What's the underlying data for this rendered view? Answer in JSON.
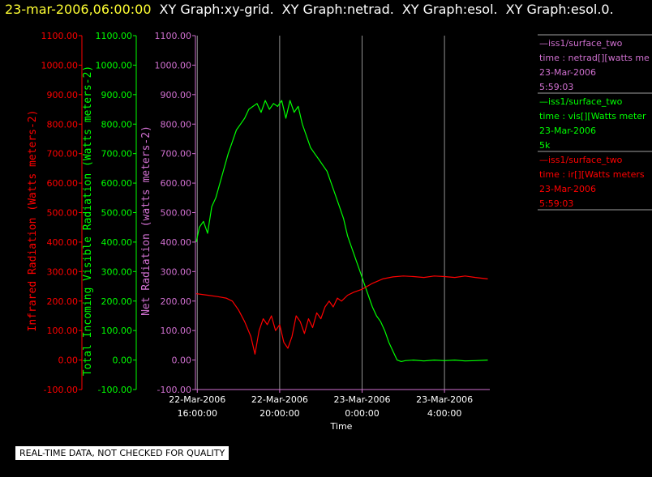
{
  "header": {
    "timestamp": "23-mar-2006,06:00:00",
    "graphs": [
      "XY Graph:xy-grid.",
      "XY Graph:netrad.",
      "XY Graph:esol.",
      "XY Graph:esol.0."
    ]
  },
  "notice": "REAL-TIME DATA, NOT CHECKED FOR QUALITY",
  "colors": {
    "net": "#d070d0",
    "vis": "#00ff00",
    "ir": "#ff0000",
    "grid": "#909090",
    "title": "#ffff33"
  },
  "legend": [
    {
      "line1": "—iss1/surface_two",
      "line2": "time : netrad[][watts me",
      "line3": "23-Mar-2006",
      "line4": "5:59:03",
      "color": "#d070d0"
    },
    {
      "line1": "—iss1/surface_two",
      "line2": "time : vis[][Watts meter",
      "line3": "23-Mar-2006",
      "line4": "5k",
      "color": "#00ff00"
    },
    {
      "line1": "—iss1/surface_two",
      "line2": "time : ir[][Watts meters",
      "line3": "23-Mar-2006",
      "line4": "5:59:03",
      "color": "#ff0000"
    }
  ],
  "chart_data": {
    "type": "line",
    "xlabel": "Time",
    "x_ticks": [
      {
        "hour": 16,
        "line1": "22-Mar-2006",
        "line2": "16:00:00"
      },
      {
        "hour": 20,
        "line1": "22-Mar-2006",
        "line2": "20:00:00"
      },
      {
        "hour": 24,
        "line1": "23-Mar-2006",
        "line2": "0:00:00"
      },
      {
        "hour": 28,
        "line1": "23-Mar-2006",
        "line2": "4:00:00"
      }
    ],
    "xlim_hours": [
      15.95,
      30.2
    ],
    "ylim": [
      -100,
      1100
    ],
    "y_ticks": [
      "-100.00",
      "0.00",
      "100.00",
      "200.00",
      "300.00",
      "400.00",
      "500.00",
      "600.00",
      "700.00",
      "800.00",
      "900.00",
      "1000.00",
      "1100.00"
    ],
    "axes": [
      {
        "label": "Infrared Radiation (Watts meters-2)",
        "color": "#ff0000"
      },
      {
        "label": "Total Incoming Visible Radiation (Watts meters-2)",
        "color": "#00ff00"
      },
      {
        "label": "Net Radiation (watts meters-2)",
        "color": "#d070d0"
      }
    ],
    "grid_x": true,
    "series": [
      {
        "name": "vis",
        "color": "#00ff00",
        "x": [
          15.95,
          16.1,
          16.3,
          16.5,
          16.7,
          16.9,
          17.1,
          17.3,
          17.5,
          17.7,
          17.9,
          18.1,
          18.3,
          18.5,
          18.7,
          18.9,
          19.1,
          19.3,
          19.5,
          19.7,
          19.9,
          20.1,
          20.3,
          20.5,
          20.7,
          20.9,
          21.1,
          21.3,
          21.5,
          21.7,
          21.9,
          22.1,
          22.3,
          22.5,
          22.7,
          22.9,
          23.1,
          23.3,
          23.5,
          23.7,
          23.9,
          24.1,
          24.3,
          24.5,
          24.7,
          24.9,
          25.1,
          25.3,
          25.5,
          25.7,
          25.9,
          26.1,
          26.5,
          27,
          27.5,
          28,
          28.5,
          29,
          29.5,
          30.1
        ],
        "y": [
          400,
          450,
          470,
          430,
          520,
          550,
          600,
          650,
          700,
          740,
          780,
          800,
          820,
          850,
          860,
          870,
          840,
          880,
          850,
          870,
          860,
          880,
          820,
          880,
          840,
          860,
          800,
          760,
          720,
          700,
          680,
          660,
          640,
          600,
          560,
          520,
          480,
          420,
          380,
          340,
          300,
          260,
          220,
          180,
          150,
          130,
          100,
          60,
          30,
          0,
          -5,
          -2,
          0,
          -3,
          0,
          -2,
          0,
          -3,
          -2,
          0
        ]
      },
      {
        "name": "ir",
        "color": "#ff0000",
        "x": [
          15.95,
          16.5,
          17,
          17.4,
          17.7,
          18,
          18.3,
          18.6,
          18.8,
          19,
          19.2,
          19.4,
          19.6,
          19.8,
          20,
          20.2,
          20.4,
          20.6,
          20.8,
          21,
          21.2,
          21.4,
          21.6,
          21.8,
          22,
          22.2,
          22.4,
          22.6,
          22.8,
          23,
          23.3,
          23.6,
          24,
          24.5,
          25,
          25.5,
          26,
          26.5,
          27,
          27.5,
          28,
          28.5,
          29,
          29.5,
          30.1
        ],
        "y": [
          225,
          220,
          215,
          210,
          200,
          170,
          130,
          80,
          20,
          100,
          140,
          120,
          150,
          100,
          120,
          60,
          40,
          80,
          150,
          130,
          90,
          140,
          110,
          160,
          140,
          180,
          200,
          180,
          210,
          200,
          220,
          230,
          240,
          260,
          275,
          282,
          285,
          283,
          280,
          285,
          283,
          280,
          285,
          280,
          275
        ]
      }
    ]
  }
}
